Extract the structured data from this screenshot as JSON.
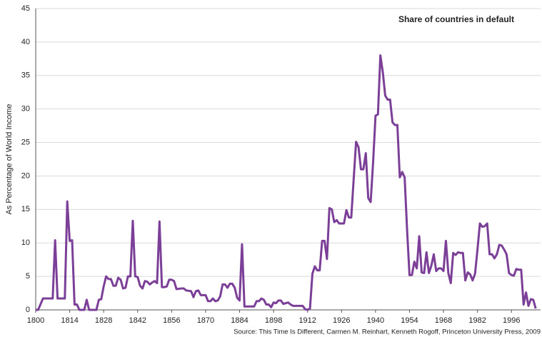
{
  "chart_data": {
    "type": "line",
    "title": "Share of countries in default",
    "y_label": "As Percentage of World Income",
    "source": "Source: This Time Is Different, Carmen M. Reinhart, Kenneth Rogoff, Princeton University Press, 2009",
    "color": "#7b3f98",
    "grid": true,
    "xlim": [
      1800,
      2008
    ],
    "ylim": [
      0,
      45
    ],
    "xticks": [
      1800,
      1814,
      1828,
      1842,
      1856,
      1870,
      1884,
      1898,
      1912,
      1926,
      1940,
      1954,
      1968,
      1982,
      1996
    ],
    "yticks": [
      0,
      5,
      10,
      15,
      20,
      25,
      30,
      35,
      40,
      45
    ],
    "x": [
      1800,
      1801,
      1803,
      1807,
      1808,
      1809,
      1812,
      1813,
      1814,
      1815,
      1816,
      1817,
      1818,
      1820,
      1821,
      1822,
      1825,
      1826,
      1827,
      1828,
      1829,
      1830,
      1831,
      1832,
      1833,
      1834,
      1835,
      1836,
      1837,
      1838,
      1839,
      1840,
      1841,
      1842,
      1843,
      1844,
      1845,
      1846,
      1847,
      1848,
      1849,
      1850,
      1851,
      1852,
      1853,
      1854,
      1855,
      1856,
      1857,
      1858,
      1860,
      1861,
      1862,
      1864,
      1865,
      1866,
      1867,
      1868,
      1870,
      1871,
      1872,
      1873,
      1874,
      1875,
      1876,
      1877,
      1878,
      1879,
      1880,
      1881,
      1882,
      1883,
      1884,
      1885,
      1886,
      1890,
      1891,
      1892,
      1893,
      1894,
      1895,
      1896,
      1897,
      1898,
      1899,
      1900,
      1901,
      1902,
      1903,
      1904,
      1905,
      1906,
      1910,
      1911,
      1912,
      1913,
      1914,
      1915,
      1916,
      1917,
      1918,
      1919,
      1920,
      1921,
      1922,
      1923,
      1924,
      1925,
      1927,
      1928,
      1929,
      1930,
      1931,
      1932,
      1933,
      1934,
      1935,
      1936,
      1937,
      1938,
      1939,
      1940,
      1941,
      1942,
      1943,
      1944,
      1945,
      1946,
      1947,
      1948,
      1949,
      1950,
      1951,
      1952,
      1953,
      1954,
      1955,
      1956,
      1957,
      1958,
      1959,
      1960,
      1961,
      1962,
      1963,
      1964,
      1965,
      1966,
      1967,
      1968,
      1969,
      1970,
      1971,
      1972,
      1973,
      1974,
      1975,
      1976,
      1977,
      1978,
      1979,
      1980,
      1981,
      1982,
      1983,
      1984,
      1985,
      1986,
      1987,
      1988,
      1989,
      1990,
      1991,
      1992,
      1993,
      1994,
      1995,
      1996,
      1997,
      1998,
      1999,
      2000,
      2001,
      2002,
      2003,
      2004,
      2005,
      2006
    ],
    "values": [
      0,
      0,
      1.7,
      1.7,
      10.4,
      1.7,
      1.7,
      16.2,
      10.3,
      10.4,
      0.8,
      0.8,
      0,
      0,
      1.5,
      0,
      0,
      1.5,
      1.6,
      3.5,
      5,
      4.6,
      4.6,
      3.6,
      3.6,
      4.8,
      4.5,
      3.2,
      3.3,
      5,
      5,
      13.3,
      5,
      4.9,
      3.6,
      3.2,
      4.3,
      4.2,
      3.8,
      4.1,
      4.3,
      4,
      13.2,
      3.4,
      3.4,
      3.5,
      4.5,
      4.5,
      4.3,
      3.1,
      3.2,
      3.2,
      2.9,
      2.8,
      1.9,
      2.8,
      2.9,
      2.2,
      2.2,
      1.3,
      1.3,
      1.7,
      1.3,
      1.4,
      2,
      3.8,
      3.8,
      3.3,
      3.9,
      3.9,
      3.3,
      1.8,
      1.4,
      9.8,
      0.5,
      0.5,
      1.3,
      1.3,
      1.7,
      1.5,
      0.8,
      0.8,
      0.4,
      1.1,
      1,
      1.4,
      1.4,
      0.9,
      1,
      1.1,
      0.8,
      0.6,
      0.6,
      0.1,
      0,
      0.2,
      5.4,
      6.5,
      5.9,
      5.9,
      10.3,
      10.3,
      7.6,
      15.2,
      15,
      13.1,
      13.4,
      12.9,
      12.9,
      14.9,
      13.8,
      13.8,
      19.5,
      25.1,
      24.3,
      21,
      21,
      23.4,
      16.7,
      16.1,
      22,
      29,
      29.2,
      38,
      35.5,
      32,
      31.4,
      31.4,
      28,
      27.6,
      27.6,
      19.8,
      20.6,
      19.8,
      12,
      5.2,
      5.2,
      7.2,
      6.2,
      11,
      5.6,
      5.5,
      8.6,
      5.5,
      6.6,
      8.3,
      5.8,
      6.2,
      6.2,
      5.8,
      10.3,
      5.5,
      4,
      8.5,
      8.2,
      8.6,
      8.5,
      8.5,
      4.4,
      5.6,
      5.3,
      4.4,
      5.4,
      9,
      12.9,
      12.4,
      12.5,
      12.9,
      8.3,
      8.3,
      7.7,
      8.3,
      9.7,
      9.6,
      9,
      8.3,
      5.5,
      5.2,
      5.1,
      6.1,
      6,
      6,
      0.8,
      2.6,
      0.6,
      1.6,
      1.5,
      0.2
    ]
  }
}
